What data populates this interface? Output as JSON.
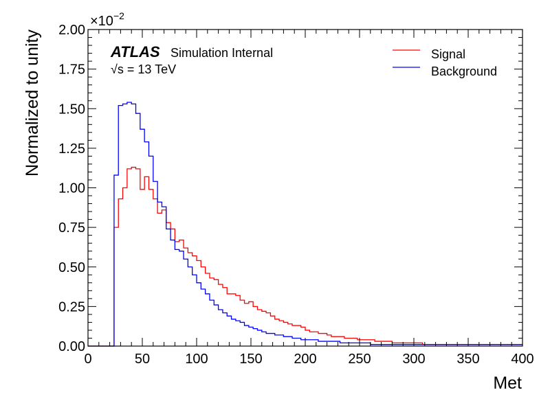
{
  "chart_data": {
    "type": "line",
    "style": "histogram-step",
    "xlabel": "Met",
    "ylabel": "Normalized to unity",
    "xlim": [
      0,
      400
    ],
    "ylim": [
      0,
      0.02
    ],
    "multiplier_label": "×10",
    "multiplier_exponent": "−2",
    "xticks": [
      0,
      50,
      100,
      150,
      200,
      250,
      300,
      350,
      400
    ],
    "yticks": [
      0.0,
      0.0025,
      0.005,
      0.0075,
      0.01,
      0.0125,
      0.015,
      0.0175,
      0.02
    ],
    "ytick_labels": [
      "0.00",
      "0.25",
      "0.50",
      "0.75",
      "1.00",
      "1.25",
      "1.50",
      "1.75",
      "2.00"
    ],
    "bin_edges_start": 0,
    "bin_width": 4,
    "legend_position": "top-right",
    "grid": false,
    "annotation": {
      "atlas": "ATLAS",
      "label": "Simulation Internal",
      "energy_sqrt": "√s",
      "energy_rest": " = 13 TeV"
    },
    "series": [
      {
        "name": "Signal",
        "color": "#ff0000",
        "values": [
          0,
          0,
          0,
          0,
          0,
          0,
          0.0075,
          0.0093,
          0.01,
          0.0112,
          0.0113,
          0.0112,
          0.0099,
          0.0107,
          0.0099,
          0.0093,
          0.0084,
          0.0086,
          0.0078,
          0.0074,
          0.0066,
          0.0067,
          0.0062,
          0.0059,
          0.0057,
          0.0054,
          0.005,
          0.0046,
          0.0043,
          0.0042,
          0.0039,
          0.0037,
          0.0033,
          0.0033,
          0.0032,
          0.0029,
          0.0027,
          0.0028,
          0.0025,
          0.0023,
          0.0022,
          0.0021,
          0.0019,
          0.0017,
          0.0016,
          0.0015,
          0.0014,
          0.0013,
          0.0013,
          0.0012,
          0.001,
          0.0009,
          0.0009,
          0.0008,
          0.0008,
          0.0007,
          0.0006,
          0.0006,
          0.0006,
          0.0005,
          0.0005,
          0.0005,
          0.0004,
          0.0004,
          0.0004,
          0.0004,
          0.0003,
          0.0003,
          0.0003,
          0.0003,
          0.0002,
          0.0002,
          0.0002,
          0.0002,
          0.0002,
          0.0002,
          0.0002,
          0.0001,
          0.0001,
          0.0001,
          0.0001,
          0.0001,
          0.0001,
          0.0001,
          0.0001,
          0.0001,
          0.0001,
          0.0001,
          0.0001,
          0.0001,
          0.0001,
          0.0001,
          0.0001,
          0.0001,
          0.0001,
          0.0001,
          0.0001,
          0.0001,
          0.0001,
          0.0001
        ]
      },
      {
        "name": "Background",
        "color": "#0000ff",
        "values": [
          0,
          0,
          0,
          0,
          0,
          0,
          0.0108,
          0.0152,
          0.0153,
          0.0154,
          0.0153,
          0.0147,
          0.0137,
          0.0129,
          0.012,
          0.0104,
          0.0091,
          0.0088,
          0.0074,
          0.0067,
          0.0061,
          0.006,
          0.0055,
          0.005,
          0.0045,
          0.004,
          0.0036,
          0.0033,
          0.0029,
          0.0026,
          0.0023,
          0.0021,
          0.0019,
          0.0017,
          0.0016,
          0.0015,
          0.0013,
          0.0012,
          0.0011,
          0.001,
          0.0009,
          0.0008,
          0.0008,
          0.0007,
          0.0007,
          0.0006,
          0.0006,
          0.0005,
          0.0005,
          0.0004,
          0.0004,
          0.0004,
          0.0004,
          0.0003,
          0.0003,
          0.0003,
          0.0003,
          0.0003,
          0.0002,
          0.0002,
          0.0002,
          0.0002,
          0.0002,
          0.0002,
          0.0002,
          0.0001,
          0.0001,
          0.0001,
          0.0001,
          0.0001,
          0.0001,
          0.0001,
          0.0001,
          0.0001,
          0.0001,
          0.0001,
          0.0001,
          0.0001,
          0.0001,
          0.0001,
          0.0001,
          0.0001,
          0.0001,
          0.0001,
          0.0001,
          0.0001,
          0.0001,
          0.0001,
          0.0001,
          0.0001,
          0.0001,
          0.0001,
          0.0001,
          0.0001,
          0.0001,
          0.0001,
          0.0001,
          0.0001,
          0.0001,
          0.0001
        ]
      }
    ]
  }
}
